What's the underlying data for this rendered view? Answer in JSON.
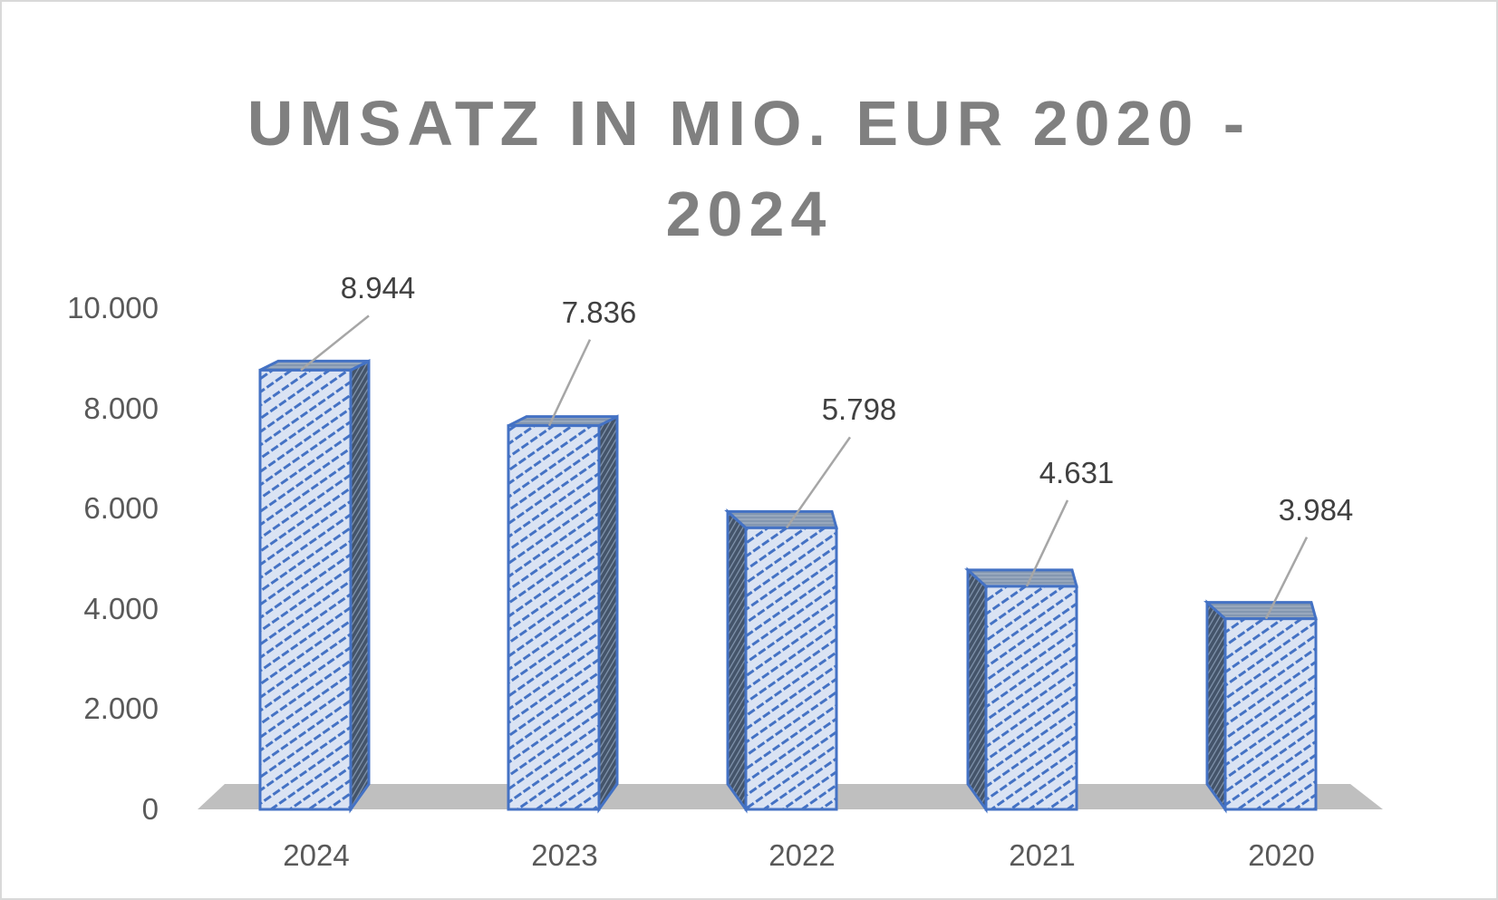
{
  "chart_data": {
    "type": "bar",
    "title": "UMSATZ IN MIO. EUR 2020 - 2024",
    "title_lines": [
      "UMSATZ IN MIO. EUR 2020 -",
      "2024"
    ],
    "categories": [
      "2024",
      "2023",
      "2022",
      "2021",
      "2020"
    ],
    "values": [
      8944,
      7836,
      5798,
      4631,
      3984
    ],
    "value_labels": [
      "8.944",
      "7.836",
      "5.798",
      "4.631",
      "3.984"
    ],
    "xlabel": "",
    "ylabel": "",
    "ylim": [
      0,
      10000
    ],
    "yticks": [
      "0",
      "2.000",
      "4.000",
      "6.000",
      "8.000",
      "10.000"
    ],
    "grid": false,
    "legend": "none",
    "style": "3d-column",
    "colors": {
      "bar_fill": "#dae3f3",
      "bar_pattern": "#4472c4",
      "bar_border": "#4472c4",
      "bar_side": "#44546a",
      "floor": "#bfbfbf",
      "title": "#808080",
      "axis_text": "#595959",
      "label_text": "#404040",
      "leader_line": "#a6a6a6"
    }
  }
}
